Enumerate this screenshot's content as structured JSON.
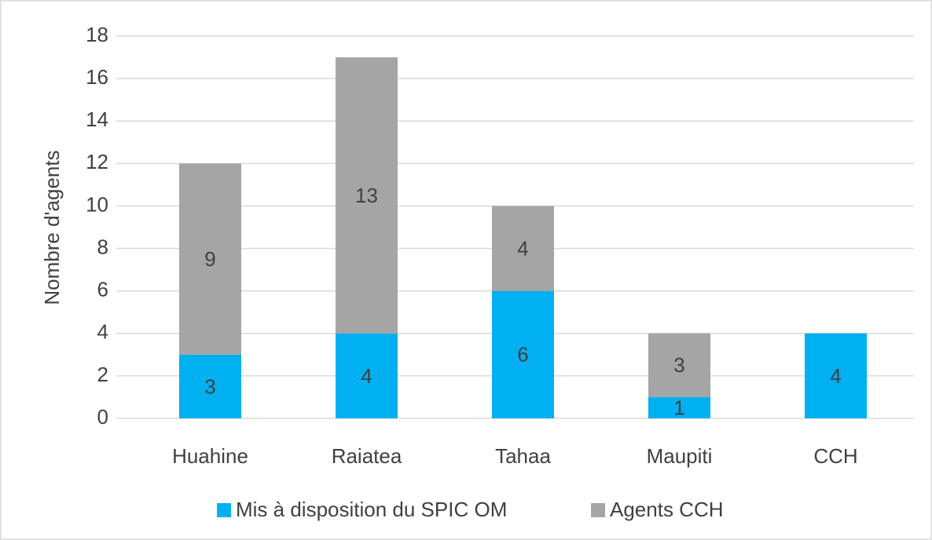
{
  "chart_data": {
    "type": "stacked_bar",
    "y_label": "Nombre d'agents",
    "categories": [
      "Huahine",
      "Raiatea",
      "Tahaa",
      "Maupiti",
      "CCH"
    ],
    "series": [
      {
        "name": "Mis à disposition du SPIC OM",
        "color": "#00b0f0",
        "values": [
          3,
          4,
          6,
          1,
          4
        ]
      },
      {
        "name": "Agents CCH",
        "color": "#a5a5a5",
        "values": [
          9,
          13,
          4,
          3,
          null
        ]
      }
    ],
    "ylim": [
      0,
      18
    ],
    "yticks": [
      0,
      2,
      4,
      6,
      8,
      10,
      12,
      14,
      16,
      18
    ],
    "grid": true,
    "legend": "bottom"
  }
}
